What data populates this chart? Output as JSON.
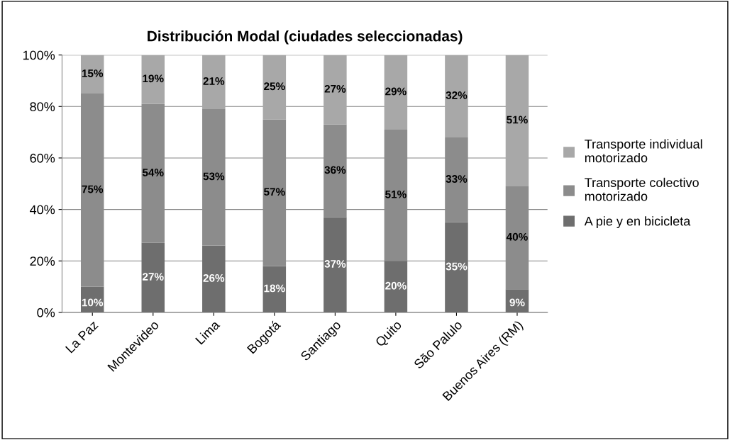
{
  "chart_data": {
    "type": "bar",
    "stacked": true,
    "title": "Distribución Modal (ciudades seleccionadas)",
    "categories": [
      "La Paz",
      "Montevideo",
      "Lima",
      "Bogotá",
      "Santiago",
      "Quito",
      "São Palulo",
      "Buenos Aires (RM)"
    ],
    "series": [
      {
        "name": "A pie y en bicicleta",
        "color": "#6e6e6e",
        "values": [
          10,
          27,
          26,
          18,
          37,
          20,
          35,
          9
        ],
        "value_labels": [
          "10%",
          "27%",
          "26%",
          "18%",
          "37%",
          "20%",
          "35%",
          "9%"
        ]
      },
      {
        "name": "Transporte colectivo motorizado",
        "color": "#8c8c8c",
        "values": [
          75,
          54,
          53,
          57,
          36,
          51,
          33,
          40
        ],
        "value_labels": [
          "75%",
          "54%",
          "53%",
          "57%",
          "36%",
          "51%",
          "33%",
          "40%"
        ]
      },
      {
        "name": "Transporte individual motorizado",
        "color": "#a8a8a8",
        "values": [
          15,
          19,
          21,
          25,
          27,
          29,
          32,
          51
        ],
        "value_labels": [
          "15%",
          "19%",
          "21%",
          "25%",
          "27%",
          "29%",
          "32%",
          "51%"
        ]
      }
    ],
    "ylim": [
      0,
      100
    ],
    "yticks": [
      {
        "value": 0,
        "label": "0%"
      },
      {
        "value": 20,
        "label": "20%"
      },
      {
        "value": 40,
        "label": "40%"
      },
      {
        "value": 60,
        "label": "60%"
      },
      {
        "value": 80,
        "label": "80%"
      },
      {
        "value": 100,
        "label": "100%"
      }
    ],
    "grid": "y",
    "legend": "right"
  }
}
